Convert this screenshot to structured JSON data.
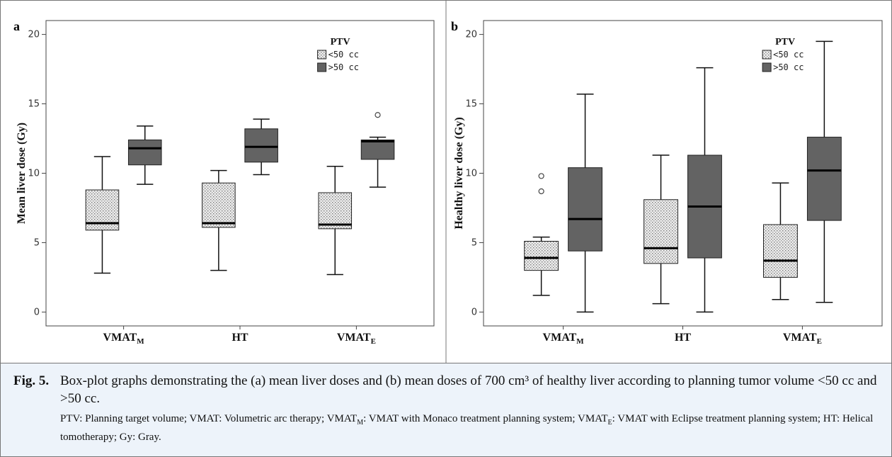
{
  "chart_data": [
    {
      "type": "box",
      "panel_label": "a",
      "ylabel": "Mean liver dose (Gy)",
      "categories": [
        {
          "main": "VMAT",
          "sub": "M"
        },
        {
          "main": "HT"
        },
        {
          "main": "VMAT",
          "sub": "E"
        }
      ],
      "legend_title": "PTV",
      "series": [
        {
          "name": "<50 cc",
          "color": "#d4d4d4",
          "pattern": "dots",
          "boxes": [
            {
              "min": 2.8,
              "q1": 5.9,
              "median": 6.4,
              "q3": 8.8,
              "max": 11.2,
              "outliers": []
            },
            {
              "min": 3.0,
              "q1": 6.1,
              "median": 6.4,
              "q3": 9.3,
              "max": 10.2,
              "outliers": []
            },
            {
              "min": 2.7,
              "q1": 6.0,
              "median": 6.3,
              "q3": 8.6,
              "max": 10.5,
              "outliers": []
            }
          ]
        },
        {
          "name": ">50 cc",
          "color": "#636363",
          "boxes": [
            {
              "min": 9.2,
              "q1": 10.6,
              "median": 11.8,
              "q3": 12.4,
              "max": 13.4,
              "outliers": []
            },
            {
              "min": 9.9,
              "q1": 10.8,
              "median": 11.9,
              "q3": 13.2,
              "max": 13.9,
              "outliers": []
            },
            {
              "min": 9.0,
              "q1": 11.0,
              "median": 12.3,
              "q3": 12.4,
              "max": 12.6,
              "outliers": [
                14.2
              ]
            }
          ]
        }
      ],
      "ylim": [
        -1,
        21
      ],
      "yticks": [
        0,
        5,
        10,
        15,
        20
      ]
    },
    {
      "type": "box",
      "panel_label": "b",
      "ylabel": "Healthy liver dose (Gy)",
      "categories": [
        {
          "main": "VMAT",
          "sub": "M"
        },
        {
          "main": "HT"
        },
        {
          "main": "VMAT",
          "sub": "E"
        }
      ],
      "legend_title": "PTV",
      "series": [
        {
          "name": "<50 cc",
          "color": "#d4d4d4",
          "pattern": "dots",
          "boxes": [
            {
              "min": 1.2,
              "q1": 3.0,
              "median": 3.9,
              "q3": 5.1,
              "max": 5.4,
              "outliers": [
                8.7,
                9.8
              ]
            },
            {
              "min": 0.6,
              "q1": 3.5,
              "median": 4.6,
              "q3": 8.1,
              "max": 11.3,
              "outliers": []
            },
            {
              "min": 0.9,
              "q1": 2.5,
              "median": 3.7,
              "q3": 6.3,
              "max": 9.3,
              "outliers": []
            }
          ]
        },
        {
          "name": ">50 cc",
          "color": "#636363",
          "boxes": [
            {
              "min": 0,
              "q1": 4.4,
              "median": 6.7,
              "q3": 10.4,
              "max": 15.7,
              "outliers": []
            },
            {
              "min": 0,
              "q1": 3.9,
              "median": 7.6,
              "q3": 11.3,
              "max": 17.6,
              "outliers": []
            },
            {
              "min": 0.7,
              "q1": 6.6,
              "median": 10.2,
              "q3": 12.6,
              "max": 19.5,
              "outliers": []
            }
          ]
        }
      ],
      "ylim": [
        -1,
        21
      ],
      "yticks": [
        0,
        5,
        10,
        15,
        20
      ]
    }
  ],
  "caption": {
    "label": "Fig. 5.",
    "text": "Box-plot graphs demonstrating the (a) mean liver doses and (b) mean doses of 700 cm³ of healthy liver according to planning tumor volume <50 cc and >50 cc.",
    "note": [
      {
        "text": "PTV: Planning target volume; VMAT: Volumetric arc therapy; VMAT"
      },
      {
        "sub": "M"
      },
      {
        "text": ": VMAT with Monaco treatment planning system; VMAT"
      },
      {
        "sub": "E"
      },
      {
        "text": ": VMAT with Eclipse treatment planning system; HT: Helical tomotherapy; Gy: Gray."
      }
    ]
  }
}
